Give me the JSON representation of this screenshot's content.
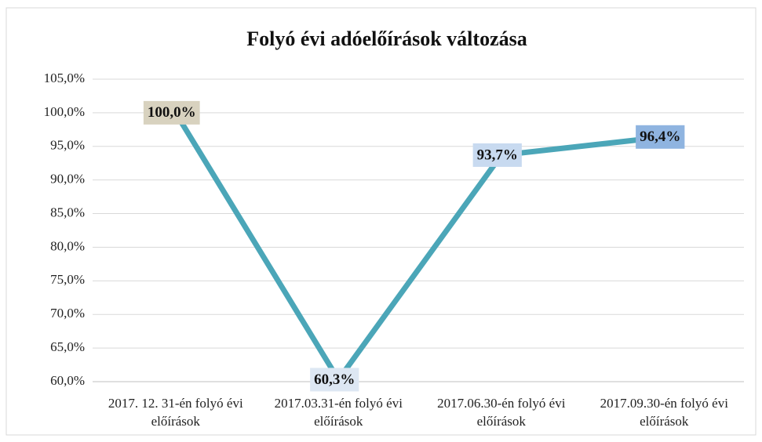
{
  "chart_data": {
    "type": "line",
    "title": "Folyó évi adóelőírások változása",
    "categories": [
      "2017. 12. 31-én folyó évi előírások",
      "2017.03.31-én  folyó évi előírások",
      "2017.06.30-én folyó évi előírások",
      "2017.09.30-én folyó évi előírások"
    ],
    "series": [
      {
        "name": "Folyó évi adóelőírások változása",
        "color": "#4ba6b8",
        "values": [
          100.0,
          60.3,
          93.7,
          96.4
        ],
        "value_labels": [
          "100,0%",
          "60,3%",
          "93,7%",
          "96,4%"
        ],
        "value_label_colors": [
          "#d8d2bf",
          "#dde7f3",
          "#c8daf0",
          "#8fb4e0"
        ]
      }
    ],
    "ylim": [
      60,
      105
    ],
    "yticks": [
      {
        "value": 60,
        "label": "60,0%"
      },
      {
        "value": 65,
        "label": "65,0%"
      },
      {
        "value": 70,
        "label": "70,0%"
      },
      {
        "value": 75,
        "label": "75,0%"
      },
      {
        "value": 80,
        "label": "80,0%"
      },
      {
        "value": 85,
        "label": "85,0%"
      },
      {
        "value": 90,
        "label": "90,0%"
      },
      {
        "value": 95,
        "label": "95,0%"
      },
      {
        "value": 100,
        "label": "100,0%"
      },
      {
        "value": 105,
        "label": "105,0%"
      }
    ],
    "grid": true
  }
}
